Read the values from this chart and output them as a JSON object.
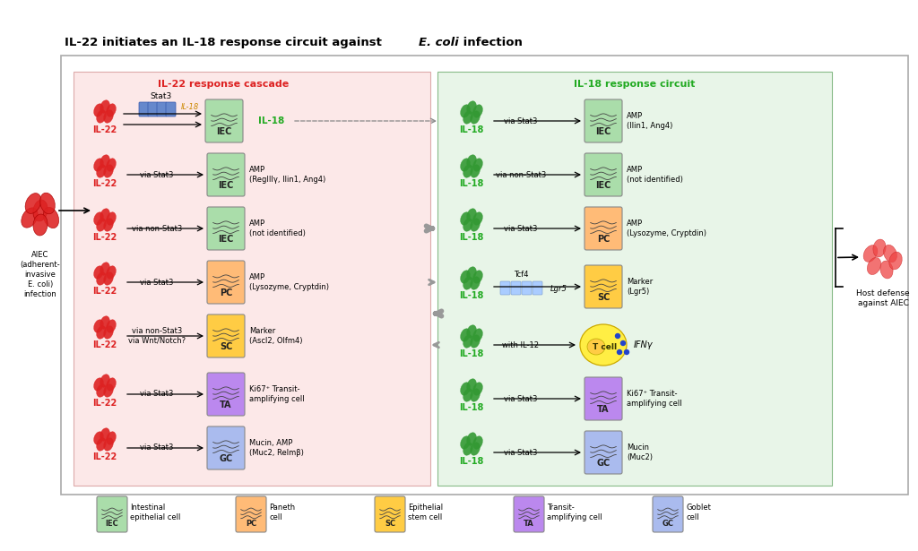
{
  "title_parts": [
    {
      "text": "IL-22 initiates an IL-18 response circuit against ",
      "style": "normal"
    },
    {
      "text": "E. coli",
      "style": "italic"
    },
    {
      "text": " infection",
      "style": "normal"
    }
  ],
  "left_panel_title": "IL-22 response cascade",
  "right_panel_title": "IL-18 response circuit",
  "left_panel_color": "#fce8e8",
  "right_panel_color": "#e8f5e8",
  "left_panel_title_color": "#dd2222",
  "right_panel_title_color": "#22aa22",
  "aiec_label": "AIEC\n(adherent-\ninvasive\nE. coli)\ninfection",
  "host_defense_label": "Host defense\nagainst AIEC",
  "il22_color": "#dd2222",
  "il18_color": "#22aa22",
  "cell_colors": {
    "IEC": "#aaddaa",
    "PC": "#ffbb77",
    "SC": "#ffcc44",
    "TA": "#bb88ee",
    "GC": "#aabbee"
  },
  "left_rows": [
    {
      "via": "via Stat3",
      "cell": "IEC",
      "result": "AMP\n(RegIIIγ, Ilin1, Ang4)"
    },
    {
      "via": "via non-Stat3",
      "cell": "IEC",
      "result": "AMP\n(not identified)"
    },
    {
      "via": "via Stat3",
      "cell": "PC",
      "result": "AMP\n(Lysozyme, Cryptdin)"
    },
    {
      "via": "via non-Stat3\nvia Wnt/Notch?",
      "cell": "SC",
      "result": "Marker\n(Ascl2, Olfm4)"
    },
    {
      "via": "via Stat3",
      "cell": "TA",
      "result": "Ki67⁺ Transit-\namplifying cell"
    },
    {
      "via": "via Stat3",
      "cell": "GC",
      "result": "Mucin, AMP\n(Muc2, Relmβ)"
    }
  ],
  "right_rows": [
    {
      "via": "via Stat3",
      "cell": "IEC",
      "result": "AMP\n(Ilin1, Ang4)"
    },
    {
      "via": "via non-Stat3",
      "cell": "IEC",
      "result": "AMP\n(not identified)"
    },
    {
      "via": "via Stat3",
      "cell": "PC",
      "result": "AMP\n(Lysozyme, Cryptdin)"
    },
    {
      "via": "Tcf4/Lgr5",
      "cell": "SC",
      "result": "Marker\n(Lgr5)"
    },
    {
      "via": "with IL-12",
      "cell": "TC",
      "result": "IFNγ"
    },
    {
      "via": "via Stat3",
      "cell": "TA",
      "result": "Ki67⁺ Transit-\namplifying cell"
    },
    {
      "via": "via Stat3",
      "cell": "GC",
      "result": "Mucin\n(Muc2)"
    }
  ],
  "legend_items": [
    {
      "label": "IEC",
      "line1": "Intestinal",
      "line2": "epithelial cell",
      "color": "#aaddaa"
    },
    {
      "label": "PC",
      "line1": "Paneth",
      "line2": "cell",
      "color": "#ffbb77"
    },
    {
      "label": "SC",
      "line1": "Epithelial",
      "line2": "stem cell",
      "color": "#ffcc44"
    },
    {
      "label": "TA",
      "line1": "Transit-",
      "line2": "amplifying cell",
      "color": "#bb88ee"
    },
    {
      "label": "GC",
      "line1": "Goblet",
      "line2": "cell",
      "color": "#aabbee"
    }
  ],
  "background_color": "#ffffff"
}
